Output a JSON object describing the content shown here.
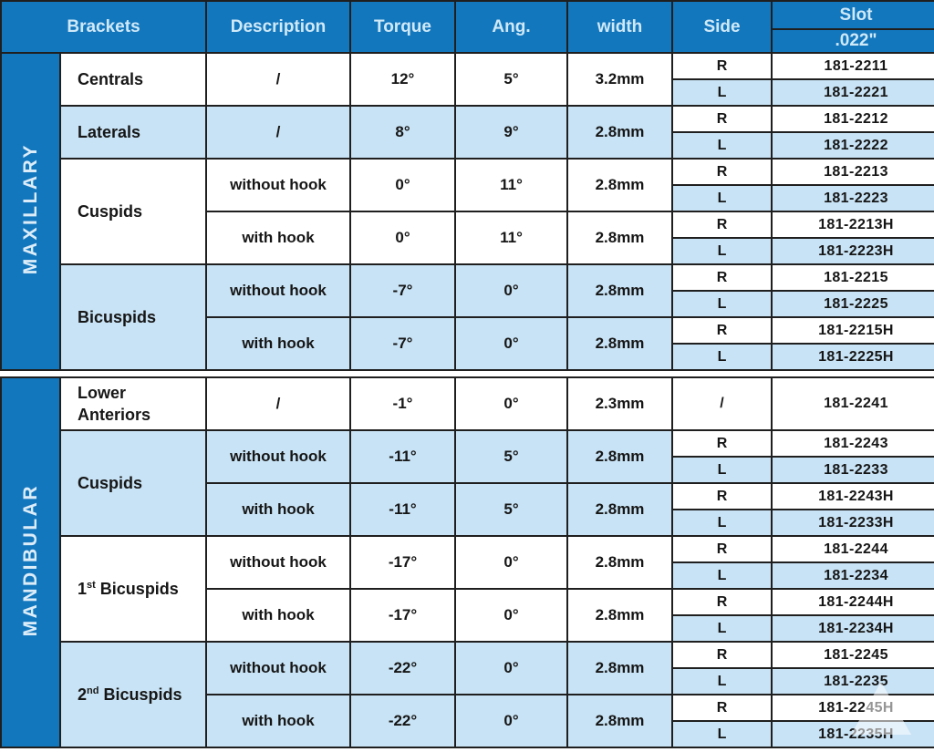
{
  "table": {
    "header": {
      "brackets": "Brackets",
      "description": "Description",
      "torque": "Torque",
      "ang": "Ang.",
      "width": "width",
      "side": "Side",
      "slot": "Slot",
      "slot_size": ".022\""
    },
    "colors": {
      "header_blue": "#1377bd",
      "header_text": "#cfe9f8",
      "row_light_blue": "#c8e3f5",
      "row_white": "#ffffff",
      "border": "#1f1f1f",
      "body_text": "#161616"
    },
    "sections": [
      {
        "label": "MAXILLARY",
        "groups": [
          {
            "name": [
              [
                {
                  "t": "Centrals"
                }
              ]
            ],
            "rows": [
              {
                "desc": "/",
                "torque": "12°",
                "ang": "5°",
                "width": "3.2mm",
                "sides": [
                  {
                    "side": "R",
                    "slot": "181-2211"
                  },
                  {
                    "side": "L",
                    "slot": "181-2221"
                  }
                ]
              }
            ]
          },
          {
            "name": [
              [
                {
                  "t": "Laterals"
                }
              ]
            ],
            "rows": [
              {
                "desc": "/",
                "torque": "8°",
                "ang": "9°",
                "width": "2.8mm",
                "sides": [
                  {
                    "side": "R",
                    "slot": "181-2212"
                  },
                  {
                    "side": "L",
                    "slot": "181-2222"
                  }
                ]
              }
            ]
          },
          {
            "name": [
              [
                {
                  "t": "Cuspids"
                }
              ]
            ],
            "rows": [
              {
                "desc": "without hook",
                "torque": "0°",
                "ang": "11°",
                "width": "2.8mm",
                "sides": [
                  {
                    "side": "R",
                    "slot": "181-2213"
                  },
                  {
                    "side": "L",
                    "slot": "181-2223"
                  }
                ]
              },
              {
                "desc": "with hook",
                "torque": "0°",
                "ang": "11°",
                "width": "2.8mm",
                "sides": [
                  {
                    "side": "R",
                    "slot": "181-2213H"
                  },
                  {
                    "side": "L",
                    "slot": "181-2223H"
                  }
                ]
              }
            ]
          },
          {
            "name": [
              [
                {
                  "t": "Bicuspids"
                }
              ]
            ],
            "rows": [
              {
                "desc": "without hook",
                "torque": "-7°",
                "ang": "0°",
                "width": "2.8mm",
                "sides": [
                  {
                    "side": "R",
                    "slot": "181-2215"
                  },
                  {
                    "side": "L",
                    "slot": "181-2225"
                  }
                ]
              },
              {
                "desc": "with hook",
                "torque": "-7°",
                "ang": "0°",
                "width": "2.8mm",
                "sides": [
                  {
                    "side": "R",
                    "slot": "181-2215H"
                  },
                  {
                    "side": "L",
                    "slot": "181-2225H"
                  }
                ]
              }
            ]
          }
        ]
      },
      {
        "label": "MANDIBULAR",
        "groups": [
          {
            "name": [
              [
                {
                  "t": "Lower"
                }
              ],
              [
                {
                  "t": "Anteriors"
                }
              ]
            ],
            "rows": [
              {
                "desc": "/",
                "torque": "-1°",
                "ang": "0°",
                "width": "2.3mm",
                "sides": [
                  {
                    "side": "/",
                    "slot": "181-2241"
                  }
                ]
              }
            ]
          },
          {
            "name": [
              [
                {
                  "t": "Cuspids"
                }
              ]
            ],
            "rows": [
              {
                "desc": "without hook",
                "torque": "-11°",
                "ang": "5°",
                "width": "2.8mm",
                "sides": [
                  {
                    "side": "R",
                    "slot": "181-2243"
                  },
                  {
                    "side": "L",
                    "slot": "181-2233"
                  }
                ]
              },
              {
                "desc": "with hook",
                "torque": "-11°",
                "ang": "5°",
                "width": "2.8mm",
                "sides": [
                  {
                    "side": "R",
                    "slot": "181-2243H"
                  },
                  {
                    "side": "L",
                    "slot": "181-2233H"
                  }
                ]
              }
            ]
          },
          {
            "name": [
              [
                {
                  "t": "1"
                },
                {
                  "t": "st",
                  "sup": true
                },
                {
                  "t": " Bicuspids"
                }
              ]
            ],
            "rows": [
              {
                "desc": "without hook",
                "torque": "-17°",
                "ang": "0°",
                "width": "2.8mm",
                "sides": [
                  {
                    "side": "R",
                    "slot": "181-2244"
                  },
                  {
                    "side": "L",
                    "slot": "181-2234"
                  }
                ]
              },
              {
                "desc": "with hook",
                "torque": "-17°",
                "ang": "0°",
                "width": "2.8mm",
                "sides": [
                  {
                    "side": "R",
                    "slot": "181-2244H"
                  },
                  {
                    "side": "L",
                    "slot": "181-2234H"
                  }
                ]
              }
            ]
          },
          {
            "name": [
              [
                {
                  "t": "2"
                },
                {
                  "t": "nd",
                  "sup": true
                },
                {
                  "t": " Bicuspids"
                }
              ]
            ],
            "rows": [
              {
                "desc": "without hook",
                "torque": "-22°",
                "ang": "0°",
                "width": "2.8mm",
                "sides": [
                  {
                    "side": "R",
                    "slot": "181-2245"
                  },
                  {
                    "side": "L",
                    "slot": "181-2235"
                  }
                ]
              },
              {
                "desc": "with hook",
                "torque": "-22°",
                "ang": "0°",
                "width": "2.8mm",
                "sides": [
                  {
                    "side": "R",
                    "slot": "181-2245H"
                  },
                  {
                    "side": "L",
                    "slot": "181-2235H"
                  }
                ]
              }
            ]
          }
        ]
      }
    ]
  }
}
